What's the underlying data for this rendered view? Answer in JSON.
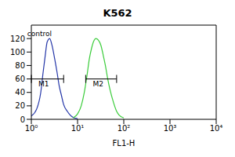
{
  "chart_data": {
    "type": "line",
    "title": "K562",
    "x_label": "FL1-H",
    "log": "x",
    "xlim": [
      1,
      10000
    ],
    "xticks": [
      {
        "value": 1,
        "label": "10⁰"
      },
      {
        "value": 10,
        "label": "10¹"
      },
      {
        "value": 100,
        "label": "10²"
      },
      {
        "value": 1000,
        "label": "10³"
      },
      {
        "value": 10000,
        "label": "10⁴"
      }
    ],
    "ylim": [
      0,
      140
    ],
    "yticks": [
      0,
      20,
      40,
      60,
      80,
      100,
      120
    ],
    "grid": false,
    "series": [
      {
        "name": "control",
        "color": "#2436a8",
        "x": [
          1.0,
          1.3,
          1.6,
          1.8,
          2.0,
          2.2,
          2.5,
          2.8,
          3.2,
          3.6,
          4.0,
          4.5,
          5.0,
          6.0,
          7.0,
          8.0,
          10.0
        ],
        "values": [
          5,
          15,
          40,
          70,
          95,
          115,
          120,
          110,
          90,
          70,
          50,
          35,
          22,
          12,
          6,
          3,
          1
        ]
      },
      {
        "color": "#3acc3a",
        "x": [
          8,
          10,
          12,
          14,
          16,
          18,
          20,
          22,
          25,
          28,
          32,
          36,
          40,
          45,
          50,
          60,
          70,
          80,
          100
        ],
        "values": [
          2,
          8,
          20,
          40,
          65,
          90,
          105,
          115,
          120,
          118,
          110,
          95,
          80,
          60,
          45,
          25,
          12,
          6,
          2
        ]
      }
    ],
    "annotations": [
      {
        "text": "control",
        "x": 1.5,
        "y": 127
      }
    ],
    "gates": [
      {
        "label": "M1",
        "x": [
          1,
          5
        ],
        "y": 60
      },
      {
        "label": "M2",
        "x": [
          15,
          70
        ],
        "y": 60
      }
    ]
  }
}
